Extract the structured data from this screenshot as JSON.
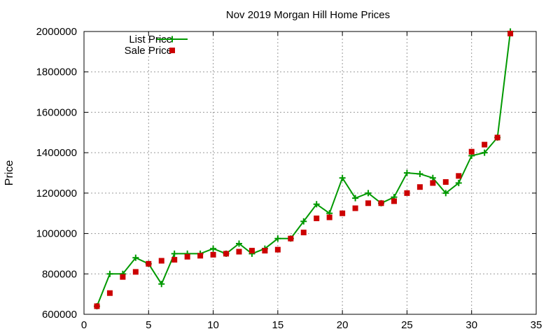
{
  "chart_data": {
    "type": "line",
    "title": "Nov 2019 Morgan Hill Home Prices",
    "xlabel": "",
    "ylabel": "Price",
    "xlim": [
      0,
      35
    ],
    "ylim": [
      600000,
      2000000
    ],
    "xticks": [
      0,
      5,
      10,
      15,
      20,
      25,
      30,
      35
    ],
    "yticks": [
      600000,
      800000,
      1000000,
      1200000,
      1400000,
      1600000,
      1800000,
      2000000
    ],
    "grid": true,
    "legend": "top-left",
    "x": [
      1,
      2,
      3,
      4,
      5,
      6,
      7,
      8,
      9,
      10,
      11,
      12,
      13,
      14,
      15,
      16,
      17,
      18,
      19,
      20,
      21,
      22,
      23,
      24,
      25,
      26,
      27,
      28,
      29,
      30,
      31,
      32,
      33
    ],
    "series": [
      {
        "name": "List Price",
        "style": "line-with-plus",
        "color": "#009900",
        "values": [
          640000,
          800000,
          800000,
          880000,
          850000,
          750000,
          900000,
          900000,
          900000,
          925000,
          900000,
          950000,
          900000,
          925000,
          975000,
          975000,
          1060000,
          1145000,
          1100000,
          1275000,
          1175000,
          1200000,
          1150000,
          1180000,
          1300000,
          1295000,
          1275000,
          1200000,
          1250000,
          1385000,
          1400000,
          1475000,
          2000000
        ]
      },
      {
        "name": "Sale Price",
        "style": "points-square",
        "color": "#cc0000",
        "values": [
          640000,
          705000,
          785000,
          810000,
          850000,
          865000,
          870000,
          885000,
          890000,
          895000,
          900000,
          910000,
          915000,
          915000,
          920000,
          975000,
          1005000,
          1075000,
          1080000,
          1100000,
          1125000,
          1150000,
          1150000,
          1160000,
          1200000,
          1230000,
          1250000,
          1255000,
          1285000,
          1405000,
          1440000,
          1475000,
          1990000
        ]
      }
    ]
  }
}
